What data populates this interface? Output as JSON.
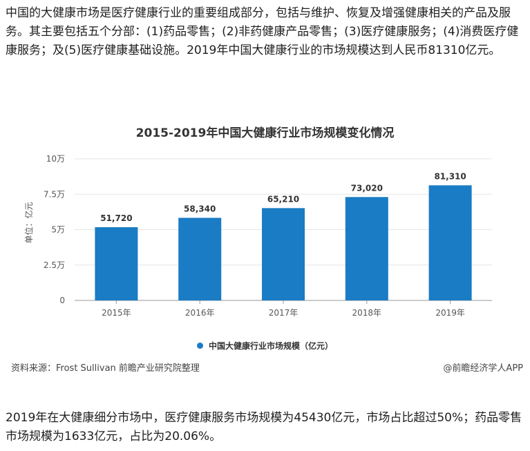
{
  "article": {
    "intro": "中国的大健康市场是医疗健康行业的重要组成部分，包括与维护、恢复及增强健康相关的产品及服务。其主要包括五个分部：(1)药品零售；(2)非药健康产品零售；(3)医疗健康服务；(4)消费医疗健康服务；及(5)医疗健康基础设施。2019年中国大健康行业的市场规模达到人民币81310亿元。",
    "outro": "2019年在大健康细分市场中，医疗健康服务市场规模为45430亿元，市场占比超过50%；药品零售市场规模为1633亿元，占比为20.06%。"
  },
  "chart_data": {
    "type": "bar",
    "title": "2015-2019年中国大健康行业市场规模变化情况",
    "ylabel": "单位：亿元",
    "categories": [
      "2015年",
      "2016年",
      "2017年",
      "2018年",
      "2019年"
    ],
    "series": [
      {
        "name": "中国大健康行业市场规模（亿元）",
        "values": [
          51720,
          58340,
          65210,
          73020,
          81310
        ],
        "labels": [
          "51,720",
          "58,340",
          "65,210",
          "73,020",
          "81,310"
        ]
      }
    ],
    "yticks": [
      {
        "value": 0,
        "label": "0"
      },
      {
        "value": 25000,
        "label": "2.5万"
      },
      {
        "value": 50000,
        "label": "5万"
      },
      {
        "value": 75000,
        "label": "7.5万"
      },
      {
        "value": 100000,
        "label": "10万"
      }
    ],
    "ylim": [
      0,
      100000
    ],
    "grid": true,
    "legend_position": "bottom",
    "bar_color": "#1a7cc4"
  },
  "footer": {
    "source": "资料来源：Frost Sullivan 前瞻产业研究院整理",
    "brand": "@前瞻经济学人APP"
  }
}
